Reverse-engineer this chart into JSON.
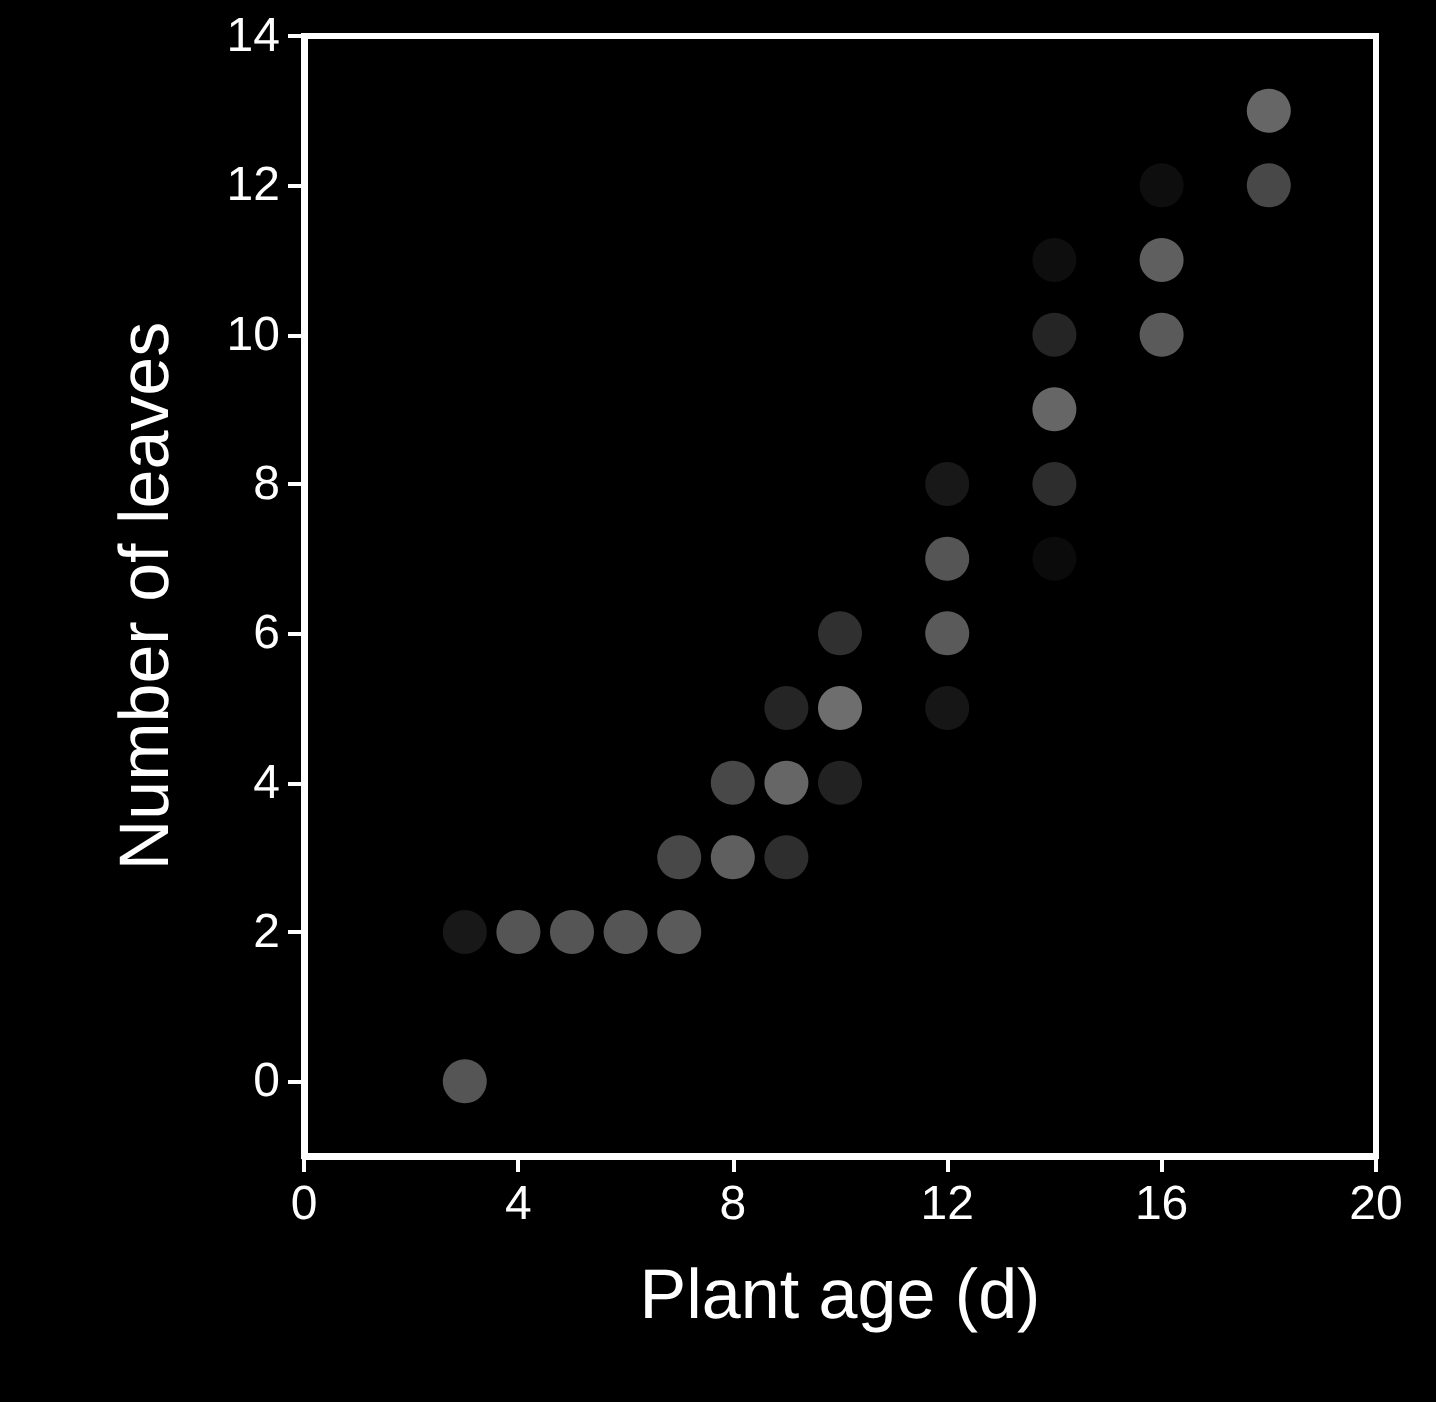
{
  "chart_data": {
    "type": "scatter",
    "xlabel": "Plant age (d)",
    "ylabel": "Number of leaves",
    "x": [
      3,
      3,
      4,
      5,
      6,
      7,
      7,
      8,
      8,
      9,
      9,
      9,
      10,
      10,
      10,
      12,
      12,
      12,
      12,
      14,
      14,
      14,
      14,
      14,
      16,
      16,
      16,
      18,
      18
    ],
    "values": [
      0,
      2,
      2,
      2,
      2,
      2,
      3,
      3,
      4,
      3,
      4,
      5,
      4,
      5,
      6,
      5,
      6,
      7,
      8,
      7,
      8,
      9,
      10,
      11,
      10,
      11,
      12,
      12,
      13
    ],
    "colors": [
      "#6a6a6a",
      "#1e1e1e",
      "#6a6a6a",
      "#6a6a6a",
      "#6a6a6a",
      "#707070",
      "#5a5a5a",
      "#777777",
      "#5a5a5a",
      "#3a3a3a",
      "#808080",
      "#2e2e2e",
      "#2a2a2a",
      "#8a8a8a",
      "#3c3c3c",
      "#1c1c1c",
      "#707070",
      "#6a6a6a",
      "#1e1e1e",
      "#0e0e0e",
      "#383838",
      "#808080",
      "#2e2e2e",
      "#111111",
      "#707070",
      "#777777",
      "#111111",
      "#5a5a5a",
      "#808080"
    ],
    "xlim": [
      0,
      20
    ],
    "xticks": [
      0,
      4,
      8,
      12,
      16,
      20
    ],
    "ylim": [
      -1,
      14
    ],
    "yticks": [
      0,
      2,
      4,
      6,
      8,
      10,
      12,
      14
    ],
    "marker": "circle"
  }
}
